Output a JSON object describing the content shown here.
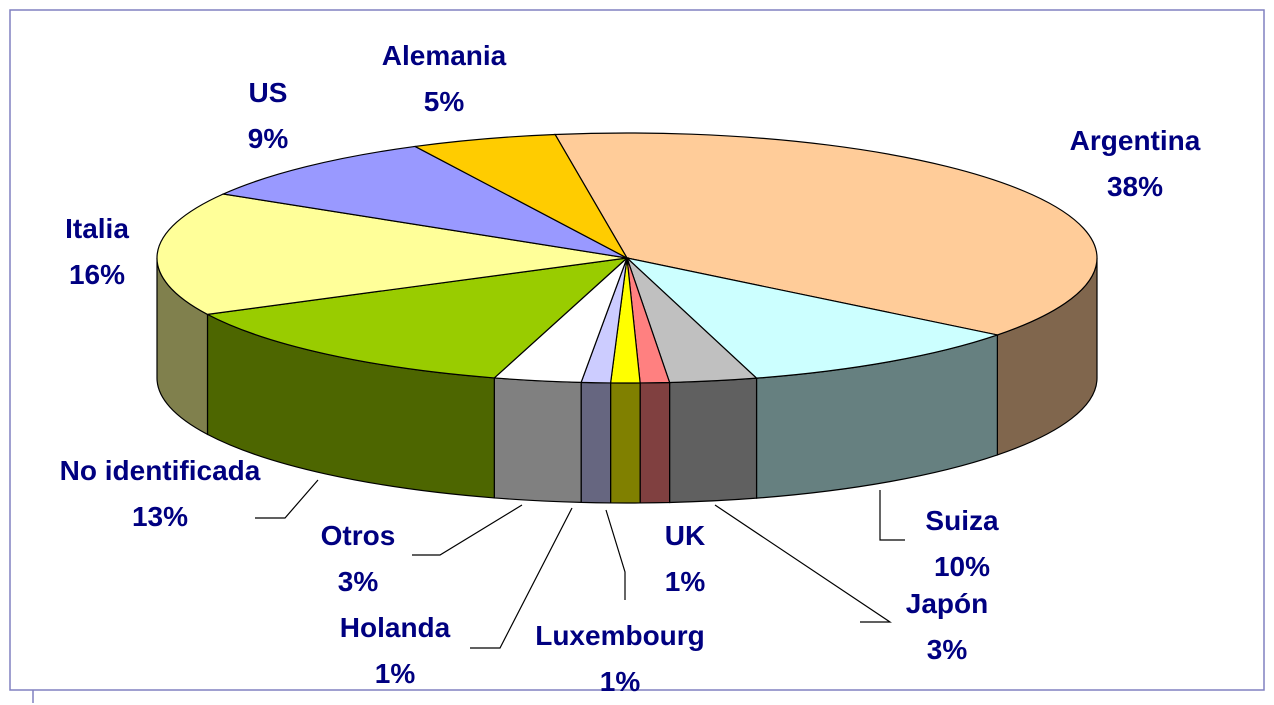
{
  "chart_data": {
    "type": "pie",
    "categories": [
      "Argentina",
      "Suiza",
      "Japón",
      "UK",
      "Luxembourg",
      "Holanda",
      "Otros",
      "No identificada",
      "Italia",
      "US",
      "Alemania"
    ],
    "values": [
      38,
      10,
      3,
      1,
      1,
      1,
      3,
      13,
      16,
      9,
      5
    ],
    "value_labels": [
      "38%",
      "10%",
      "3%",
      "1%",
      "1%",
      "1%",
      "3%",
      "13%",
      "16%",
      "9%",
      "5%"
    ],
    "colors": [
      "#FFCC99",
      "#CCFFFF",
      "#C0C0C0",
      "#FF8080",
      "#FFFF00",
      "#CCCCFF",
      "#FFFFFF",
      "#99CC00",
      "#FFFF99",
      "#9999FF",
      "#FFCC00"
    ]
  }
}
